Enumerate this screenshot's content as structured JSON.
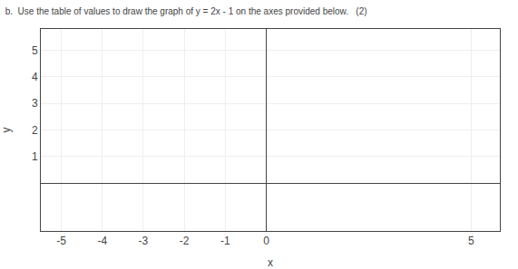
{
  "chart_data": {
    "type": "line",
    "title": "b.  Use the table of values to draw the graph of y = 2x - 1 on the axes provided below.   (2)",
    "x_label": "x",
    "y_label": "y",
    "xlim": [
      -5.5,
      5.7
    ],
    "ylim": [
      -1.8,
      5.8
    ],
    "xticks": [
      -5,
      -4,
      -3,
      -2,
      -1,
      0,
      5
    ],
    "yticks": [
      1,
      2,
      3,
      4,
      5
    ],
    "grid": true
  }
}
